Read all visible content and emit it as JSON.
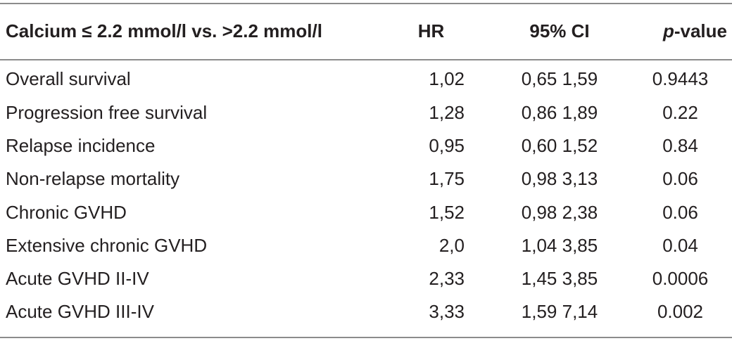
{
  "table": {
    "header": {
      "label": "Calcium ≤ 2.2 mmol/l vs. >2.2 mmol/l",
      "hr": "HR",
      "ci": "95% CI",
      "p_italic": "p",
      "p_rest": "-value"
    },
    "rows": [
      {
        "label": "Overall survival",
        "hr": "1,02",
        "ci": "0,65 1,59",
        "p": "0.9443"
      },
      {
        "label": "Progression free survival",
        "hr": "1,28",
        "ci": "0,86 1,89",
        "p": "0.22"
      },
      {
        "label": "Relapse incidence",
        "hr": "0,95",
        "ci": "0,60 1,52",
        "p": "0.84"
      },
      {
        "label": "Non-relapse mortality",
        "hr": "1,75",
        "ci": "0,98 3,13",
        "p": "0.06"
      },
      {
        "label": "Chronic GVHD",
        "hr": "1,52",
        "ci": "0,98 2,38",
        "p": "0.06"
      },
      {
        "label": "Extensive chronic GVHD",
        "hr": "2,0",
        "ci": "1,04 3,85",
        "p": "0.04"
      },
      {
        "label": "Acute GVHD II-IV",
        "hr": "2,33",
        "ci": "1,45 3,85",
        "p": "0.0006"
      },
      {
        "label": "Acute GVHD III-IV",
        "hr": "3,33",
        "ci": "1,59 7,14",
        "p": "0.002"
      }
    ]
  }
}
